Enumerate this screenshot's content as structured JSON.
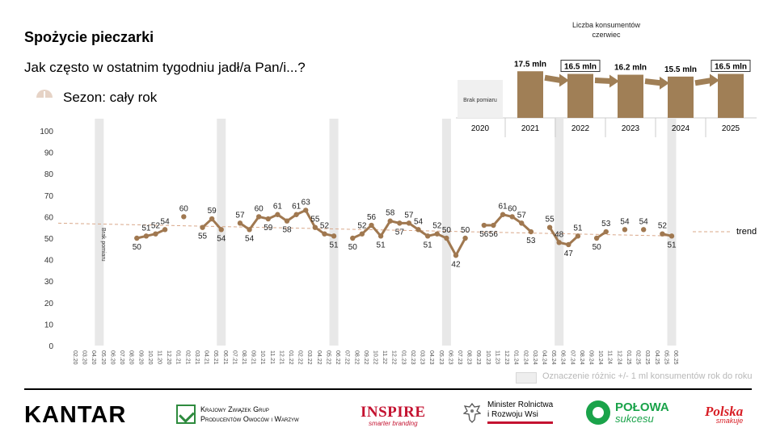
{
  "header": {
    "title": "Spożycie pieczarki",
    "subtitle": "Jak często w ostatnim tygodniu jadł/a Pan/i...?",
    "season": "Sezon: cały rok",
    "season_icon": "half-circle-icon"
  },
  "chart_data": [
    {
      "type": "line",
      "ylim": [
        0,
        100
      ],
      "yticks": [
        0,
        10,
        20,
        30,
        40,
        50,
        60,
        70,
        80,
        90,
        100
      ],
      "categories": [
        "02.20",
        "03.20",
        "04.20",
        "05.20",
        "06.20",
        "07.20",
        "08.20",
        "09.20",
        "10.20",
        "11.20",
        "12.20",
        "01.21",
        "02.21",
        "03.21",
        "04.21",
        "05.21",
        "06.21",
        "07.21",
        "08.21",
        "09.21",
        "10.21",
        "11.21",
        "12.21",
        "01.22",
        "02.22",
        "03.22",
        "04.22",
        "05.22",
        "06.22",
        "07.22",
        "08.22",
        "09.22",
        "10.22",
        "11.22",
        "12.22",
        "01.23",
        "02.23",
        "03.23",
        "04.23",
        "05.23",
        "06.23",
        "07.23",
        "08.23",
        "09.23",
        "10.23",
        "11.23",
        "12.23",
        "01.24",
        "02.24",
        "03.24",
        "04.24",
        "05.24",
        "06.24",
        "07.24",
        "08.24",
        "09.24",
        "10.24",
        "11.24",
        "12.24",
        "01.25",
        "02.25",
        "03.25",
        "04.25",
        "05.25",
        "06.25"
      ],
      "values": [
        null,
        null,
        null,
        null,
        null,
        null,
        null,
        50,
        51,
        52,
        54,
        null,
        60,
        null,
        55,
        59,
        54,
        null,
        57,
        54,
        60,
        59,
        61,
        58,
        61,
        63,
        55,
        52,
        51,
        null,
        50,
        52,
        56,
        51,
        58,
        57,
        57,
        54,
        51,
        52,
        50,
        42,
        50,
        null,
        56,
        56,
        61,
        60,
        57,
        53,
        null,
        55,
        48,
        47,
        51,
        null,
        50,
        53,
        null,
        54,
        null,
        54,
        null,
        52,
        51
      ],
      "series_color": "#a07850",
      "shaded_periods": [
        "05.20",
        "06.21",
        "06.22",
        "06.23",
        "06.24",
        "06.25"
      ],
      "annotation": "Brak pomiaru",
      "trend": {
        "label": "trend",
        "start": 57,
        "end": 51,
        "color": "#d9a88a"
      },
      "legend_note": "Oznaczenie różnic +/- 1 ml konsumentów rok do roku"
    },
    {
      "type": "bar",
      "title": "Liczba konsumentów",
      "subtitle": "czerwiec",
      "categories": [
        "2020",
        "2021",
        "2022",
        "2023",
        "2024",
        "2025"
      ],
      "values": [
        null,
        17.5,
        16.5,
        16.2,
        15.5,
        16.5
      ],
      "labels": [
        "",
        "17.5 mln",
        "16.5 mln",
        "16.2 mln",
        "15.5 mln",
        "16.5 mln"
      ],
      "boxed": [
        false,
        false,
        true,
        false,
        false,
        true
      ],
      "missing_label": "Brak pomiaru",
      "bar_color": "#a07f56"
    }
  ],
  "logos": {
    "kantar": "KANTAR",
    "kzg_line1": "Krajowy Związek Grup",
    "kzg_line2": "Producentów Owoców i Warzyw",
    "inspire": "INSPIRE",
    "inspire_tagline": "smarter branding",
    "minister_line1": "Minister Rolnictwa",
    "minister_line2": "i Rozwoju Wsi",
    "polowa": "POŁOWA",
    "polowa_sub": "sukcesu",
    "polska": "Polska",
    "polska_sub": "smakuje"
  }
}
